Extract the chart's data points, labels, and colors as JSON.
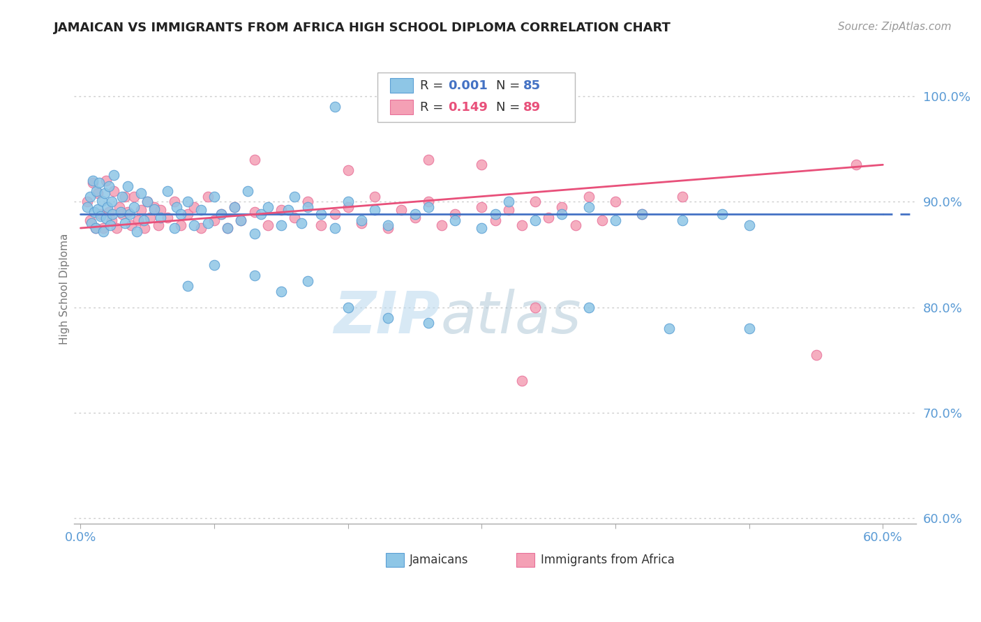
{
  "title": "JAMAICAN VS IMMIGRANTS FROM AFRICA HIGH SCHOOL DIPLOMA CORRELATION CHART",
  "source": "Source: ZipAtlas.com",
  "ylabel": "High School Diploma",
  "ytick_labels": [
    "60.0%",
    "70.0%",
    "80.0%",
    "90.0%",
    "100.0%"
  ],
  "ytick_values": [
    0.6,
    0.7,
    0.8,
    0.9,
    1.0
  ],
  "xlim": [
    0.0,
    0.6
  ],
  "ylim": [
    0.595,
    1.04
  ],
  "legend_blue_label": "Jamaicans",
  "legend_pink_label": "Immigrants from Africa",
  "R_blue_val": "0.001",
  "N_blue_val": "85",
  "R_pink_val": "0.149",
  "N_pink_val": "89",
  "blue_color": "#8ec6e6",
  "pink_color": "#f4a0b5",
  "blue_edge_color": "#5a9fd4",
  "pink_edge_color": "#e87099",
  "blue_line_color": "#4472c4",
  "pink_line_color": "#e8507a",
  "dot_size": 110,
  "watermark_color": "#c8dff0",
  "grid_color": "#cccccc",
  "tick_color": "#5b9bd5",
  "title_fontsize": 13,
  "source_fontsize": 11,
  "tick_fontsize": 13,
  "ylabel_fontsize": 11,
  "legend_fontsize": 13,
  "watermark_fontsize": 60
}
